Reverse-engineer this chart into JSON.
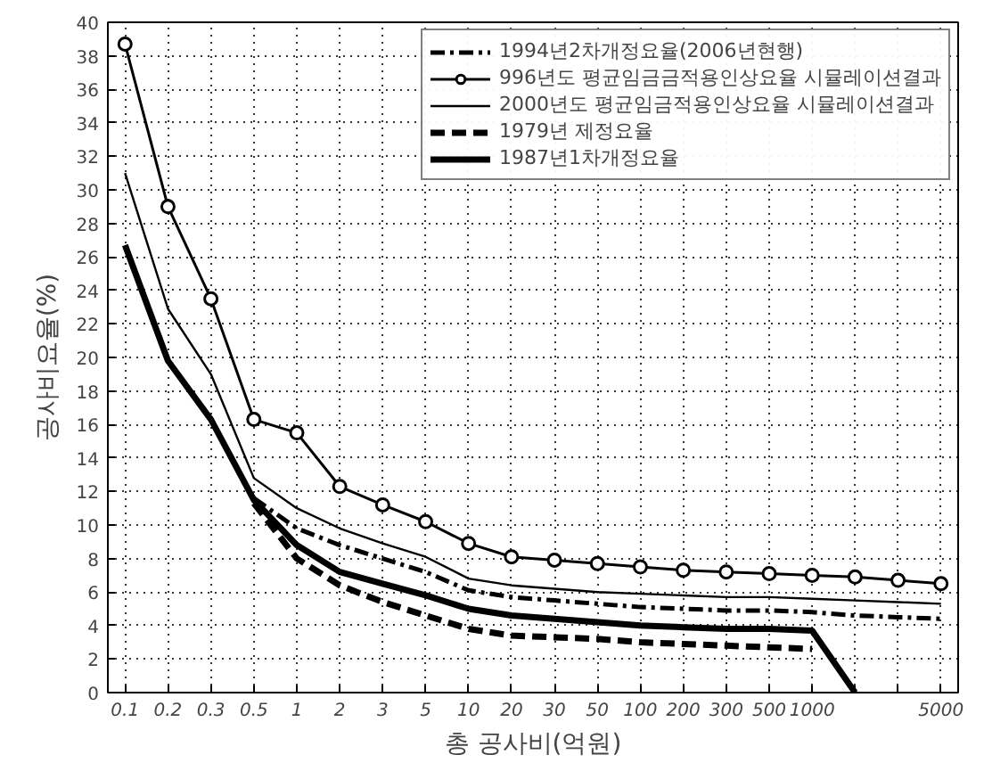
{
  "chart_data": {
    "type": "line",
    "xlabel": "총 공사비(억원)",
    "ylabel": "공사비요율(%)",
    "categories": [
      "0.1",
      "0.2",
      "0.3",
      "0.5",
      "1",
      "2",
      "3",
      "5",
      "10",
      "20",
      "30",
      "50",
      "100",
      "200",
      "300",
      "500",
      "1000",
      null,
      null,
      "5000"
    ],
    "ylim": [
      0,
      40
    ],
    "yticks": [
      0,
      2,
      4,
      6,
      8,
      10,
      12,
      14,
      16,
      18,
      20,
      22,
      24,
      26,
      28,
      30,
      32,
      34,
      36,
      38,
      40
    ],
    "grid": true,
    "legend": "top right",
    "series": [
      {
        "name": "1994년2차개정요율(2006년현행)",
        "color": "#000000",
        "line_style": "dashdot",
        "marker": "none",
        "values": [
          null,
          null,
          null,
          11.6,
          9.8,
          8.8,
          8.0,
          7.2,
          6.1,
          5.7,
          5.5,
          5.3,
          5.1,
          5.0,
          4.9,
          4.9,
          4.8,
          4.6,
          4.5,
          4.4
        ]
      },
      {
        "name": "996년도 평균임금금적용인상요율 시뮬레이션결과",
        "color": "#000000",
        "line_style": "solid",
        "marker": "circle",
        "values": [
          38.7,
          29.0,
          23.5,
          16.3,
          15.5,
          12.3,
          11.2,
          10.2,
          8.9,
          8.1,
          7.9,
          7.7,
          7.5,
          7.3,
          7.2,
          7.1,
          7.0,
          6.9,
          6.7,
          6.5
        ]
      },
      {
        "name": "2000년도 평균임금적용인상요율 시뮬레이션결과",
        "color": "#000000",
        "line_style": "solid",
        "marker": "none",
        "values": [
          31.0,
          22.9,
          19.0,
          12.8,
          11.0,
          9.8,
          8.9,
          8.1,
          6.8,
          6.4,
          6.2,
          6.0,
          5.9,
          5.8,
          5.7,
          5.7,
          5.6,
          5.5,
          5.4,
          5.3
        ]
      },
      {
        "name": "1979년 제정요율",
        "color": "#000000",
        "line_style": "dashed",
        "marker": "none",
        "values": [
          null,
          null,
          null,
          11.3,
          8.0,
          6.4,
          5.4,
          4.6,
          3.8,
          3.4,
          3.3,
          3.2,
          3.0,
          2.9,
          2.8,
          2.7,
          2.6,
          null,
          null,
          null
        ]
      },
      {
        "name": "1987년1차개정요율",
        "color": "#000000",
        "line_style": "solid",
        "marker": "none",
        "values": [
          26.7,
          19.8,
          16.3,
          11.5,
          8.8,
          7.2,
          6.5,
          5.8,
          5.0,
          4.6,
          4.4,
          4.2,
          4.0,
          3.9,
          3.8,
          3.8,
          3.7,
          0,
          null,
          null
        ]
      }
    ]
  }
}
